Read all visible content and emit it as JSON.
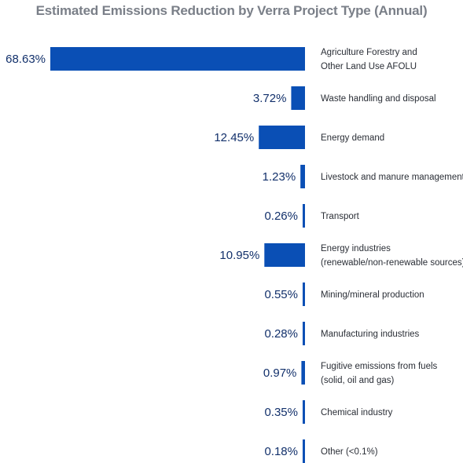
{
  "chart_data": {
    "type": "bar",
    "orientation": "horizontal",
    "title": "Estimated Emissions Reduction by Verra Project Type (Annual)",
    "bar_color": "#0a4fb5",
    "value_color": "#12306b",
    "categories": [
      [
        "Agriculture Forestry and",
        "Other Land Use AFOLU"
      ],
      [
        "Waste handling and disposal"
      ],
      [
        "Energy demand"
      ],
      [
        "Livestock and manure management"
      ],
      [
        "Transport"
      ],
      [
        "Energy industries",
        "(renewable/non-renewable sources)"
      ],
      [
        "Mining/mineral production"
      ],
      [
        "Manufacturing industries"
      ],
      [
        "Fugitive emissions from fuels",
        "(solid, oil and gas)"
      ],
      [
        "Chemical industry"
      ],
      [
        "Other (<0.1%)"
      ]
    ],
    "values": [
      68.63,
      3.72,
      12.45,
      1.23,
      0.26,
      10.95,
      0.55,
      0.28,
      0.97,
      0.35,
      0.18
    ],
    "value_labels": [
      "68.63%",
      "3.72%",
      "12.45%",
      "1.23%",
      "0.26%",
      "10.95%",
      "0.55%",
      "0.28%",
      "0.97%",
      "0.35%",
      "0.18%"
    ],
    "xlim": [
      0,
      68.63
    ]
  }
}
